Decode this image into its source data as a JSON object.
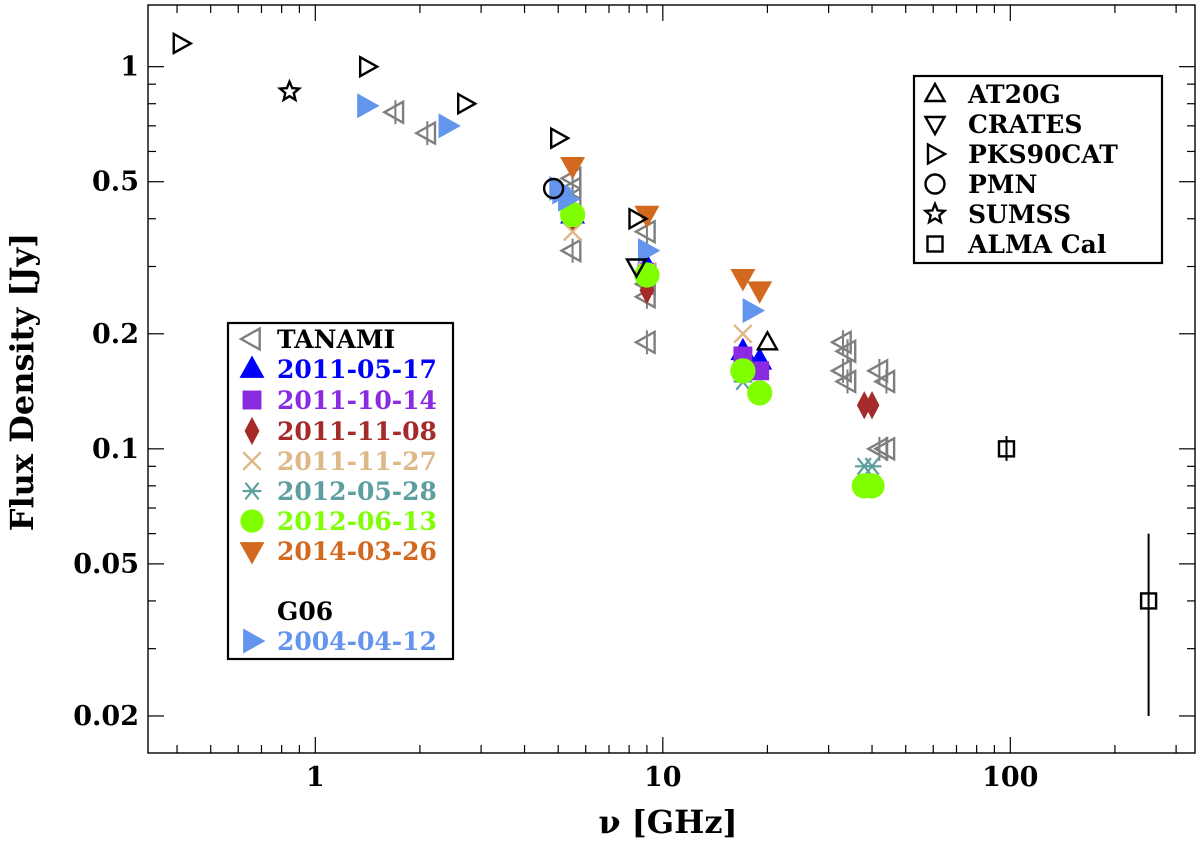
{
  "chart_data": {
    "type": "scatter",
    "xscale": "log",
    "yscale": "log",
    "xlim": [
      0.33,
      340
    ],
    "ylim": [
      0.016,
      1.45
    ],
    "xlabel": "ν [GHz]",
    "ylabel": "Flux Density [Jy]",
    "x_ticks": [
      {
        "value": 1,
        "label": "1"
      },
      {
        "value": 10,
        "label": "10"
      },
      {
        "value": 100,
        "label": "100"
      }
    ],
    "y_ticks": [
      {
        "value": 0.02,
        "label": "0.02"
      },
      {
        "value": 0.05,
        "label": "0.05"
      },
      {
        "value": 0.1,
        "label": "0.1"
      },
      {
        "value": 0.2,
        "label": "0.2"
      },
      {
        "value": 0.5,
        "label": "0.5"
      },
      {
        "value": 1,
        "label": "1"
      }
    ],
    "catalog_legend_title": "",
    "catalogs": [
      {
        "name": "AT20G",
        "marker": "triangle-up",
        "color": "#000000",
        "points": [
          [
            20,
            0.19
          ]
        ]
      },
      {
        "name": "CRATES",
        "marker": "triangle-down",
        "color": "#000000",
        "points": [
          [
            8.4,
            0.3
          ]
        ]
      },
      {
        "name": "PKS90CAT",
        "marker": "triangle-right",
        "color": "#000000",
        "points": [
          [
            0.41,
            1.15
          ],
          [
            1.41,
            1.0
          ],
          [
            2.7,
            0.8
          ],
          [
            5.0,
            0.65
          ],
          [
            8.4,
            0.4
          ]
        ]
      },
      {
        "name": "PMN",
        "marker": "circle",
        "color": "#000000",
        "points": [
          [
            4.85,
            0.48
          ]
        ]
      },
      {
        "name": "SUMSS",
        "marker": "star",
        "color": "#000000",
        "points": [
          [
            0.843,
            0.86
          ]
        ]
      },
      {
        "name": "ALMA Cal",
        "marker": "square",
        "color": "#000000",
        "points": [
          [
            97.5,
            0.1
          ],
          [
            250,
            0.04
          ]
        ],
        "errors": [
          [
            0.093,
            0.108
          ],
          [
            0.02,
            0.06
          ]
        ]
      }
    ],
    "series_legend_title": "G06",
    "series": [
      {
        "name": "TANAMI",
        "marker": "triangle-left",
        "color": "#7f7f7f",
        "filled": false,
        "points": [
          [
            1.7,
            0.76
          ],
          [
            2.1,
            0.67
          ],
          [
            5.5,
            0.51
          ],
          [
            5.5,
            0.48
          ],
          [
            5.5,
            0.45
          ],
          [
            5.5,
            0.33
          ],
          [
            9.0,
            0.37
          ],
          [
            9.0,
            0.27
          ],
          [
            9.0,
            0.25
          ],
          [
            9.0,
            0.19
          ],
          [
            33,
            0.19
          ],
          [
            34,
            0.18
          ],
          [
            33,
            0.16
          ],
          [
            34,
            0.15
          ],
          [
            42,
            0.16
          ],
          [
            44,
            0.15
          ],
          [
            42,
            0.1
          ],
          [
            44,
            0.1
          ]
        ]
      },
      {
        "name": "2011-05-17",
        "marker": "triangle-up",
        "color": "#0000ff",
        "filled": true,
        "points": [
          [
            5.5,
            0.41
          ],
          [
            9.0,
            0.3
          ],
          [
            17.0,
            0.18
          ],
          [
            19.0,
            0.17
          ]
        ]
      },
      {
        "name": "2011-10-14",
        "marker": "square",
        "color": "#8a2be2",
        "filled": true,
        "points": [
          [
            9.0,
            0.29
          ],
          [
            17.0,
            0.175
          ],
          [
            19.0,
            0.16
          ]
        ]
      },
      {
        "name": "2011-11-08",
        "marker": "diamond",
        "color": "#a52a2a",
        "filled": true,
        "points": [
          [
            5.5,
            0.4
          ],
          [
            9.0,
            0.26
          ],
          [
            38,
            0.13
          ],
          [
            40,
            0.13
          ]
        ]
      },
      {
        "name": "2011-11-27",
        "marker": "cross",
        "color": "#deb887",
        "filled": false,
        "points": [
          [
            5.5,
            0.37
          ],
          [
            9.0,
            0.29
          ],
          [
            17.0,
            0.2
          ]
        ]
      },
      {
        "name": "2012-05-28",
        "marker": "asterisk",
        "color": "#5f9ea0",
        "filled": false,
        "points": [
          [
            17.0,
            0.15
          ],
          [
            19.0,
            0.14
          ],
          [
            38,
            0.09
          ],
          [
            40,
            0.09
          ]
        ]
      },
      {
        "name": "2012-06-13",
        "marker": "circle",
        "color": "#7fff00",
        "filled": true,
        "points": [
          [
            5.5,
            0.41
          ],
          [
            9.0,
            0.285
          ],
          [
            17.0,
            0.16
          ],
          [
            19.0,
            0.14
          ],
          [
            38,
            0.08
          ],
          [
            40,
            0.08
          ]
        ]
      },
      {
        "name": "2014-03-26",
        "marker": "triangle-down",
        "color": "#d2691e",
        "filled": true,
        "points": [
          [
            5.5,
            0.55
          ],
          [
            9.0,
            0.41
          ],
          [
            17.0,
            0.28
          ],
          [
            19.0,
            0.26
          ]
        ]
      },
      {
        "name": "2004-04-12",
        "marker": "triangle-right",
        "color": "#6495ed",
        "filled": true,
        "group": "G06",
        "points": [
          [
            1.4,
            0.79
          ],
          [
            2.4,
            0.7
          ],
          [
            5.0,
            0.48
          ],
          [
            5.1,
            0.47
          ],
          [
            5.3,
            0.45
          ],
          [
            9.0,
            0.33
          ],
          [
            18.0,
            0.23
          ]
        ]
      }
    ]
  }
}
